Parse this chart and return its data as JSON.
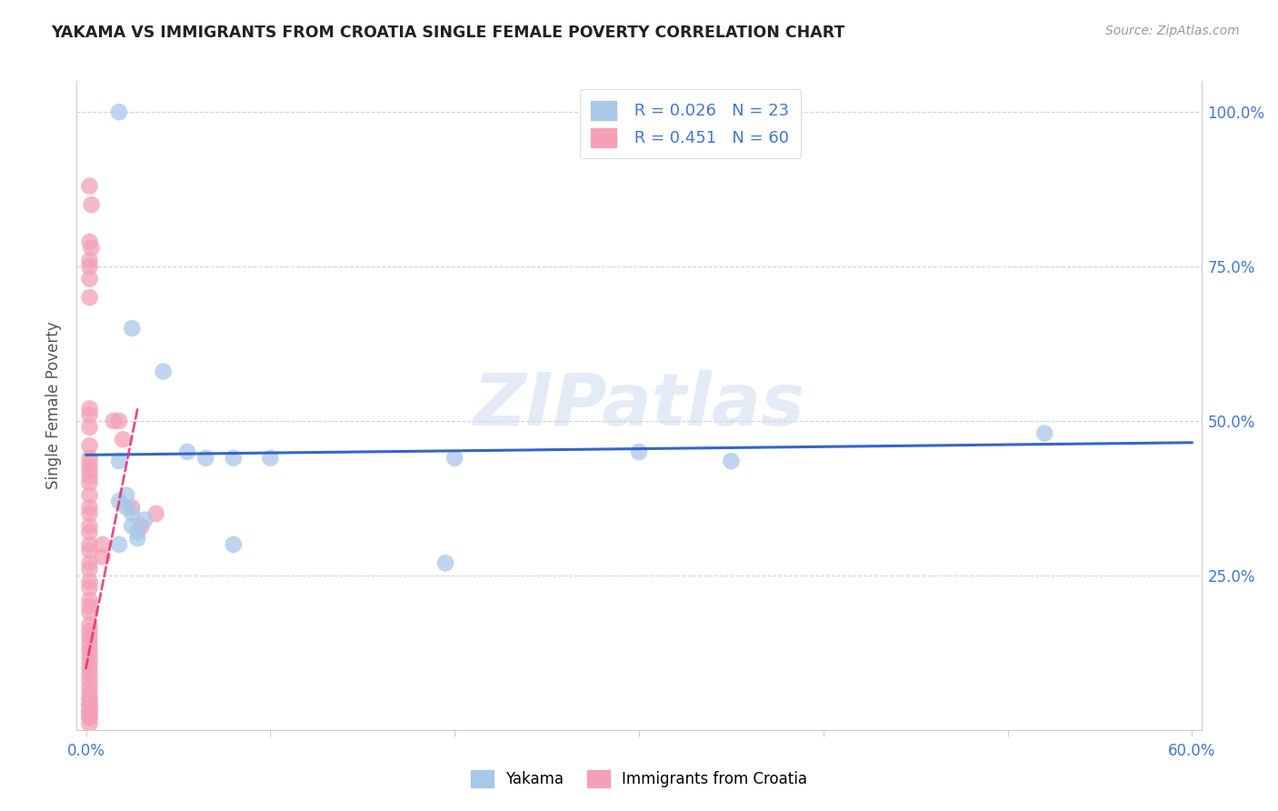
{
  "title": "YAKAMA VS IMMIGRANTS FROM CROATIA SINGLE FEMALE POVERTY CORRELATION CHART",
  "source": "Source: ZipAtlas.com",
  "ylabel": "Single Female Poverty",
  "xlim": [
    -0.005,
    0.605
  ],
  "ylim": [
    0.0,
    1.05
  ],
  "xticks": [
    0.0,
    0.1,
    0.2,
    0.3,
    0.4,
    0.5,
    0.6
  ],
  "xtick_labels": [
    "0.0%",
    "",
    "",
    "",
    "",
    "",
    "60.0%"
  ],
  "yticks": [
    0.0,
    0.25,
    0.5,
    0.75,
    1.0
  ],
  "ytick_labels_right": [
    "",
    "25.0%",
    "50.0%",
    "75.0%",
    "100.0%"
  ],
  "blue_R": "0.026",
  "blue_N": "23",
  "pink_R": "0.451",
  "pink_N": "60",
  "blue_color": "#a8c8e8",
  "pink_color": "#f4a0b5",
  "blue_line_color": "#3366cc",
  "pink_line_color": "#e03070",
  "watermark": "ZIPatlas",
  "blue_line_x": [
    0.0,
    0.6
  ],
  "blue_line_y": [
    0.445,
    0.465
  ],
  "pink_line_x": [
    0.0,
    0.028
  ],
  "pink_line_y": [
    0.1,
    0.52
  ],
  "blue_points_x": [
    0.018,
    0.025,
    0.042,
    0.055,
    0.065,
    0.08,
    0.08,
    0.1,
    0.2,
    0.195,
    0.3,
    0.35,
    0.52,
    0.018,
    0.018,
    0.022,
    0.022,
    0.025,
    0.025,
    0.028,
    0.028,
    0.032,
    0.018
  ],
  "blue_points_y": [
    1.0,
    0.65,
    0.58,
    0.45,
    0.44,
    0.44,
    0.3,
    0.44,
    0.44,
    0.27,
    0.45,
    0.435,
    0.48,
    0.435,
    0.37,
    0.38,
    0.36,
    0.33,
    0.35,
    0.32,
    0.31,
    0.34,
    0.3
  ],
  "pink_points_x": [
    0.002,
    0.003,
    0.002,
    0.003,
    0.002,
    0.002,
    0.002,
    0.002,
    0.002,
    0.002,
    0.002,
    0.002,
    0.002,
    0.002,
    0.002,
    0.002,
    0.002,
    0.002,
    0.002,
    0.002,
    0.002,
    0.002,
    0.002,
    0.002,
    0.002,
    0.002,
    0.002,
    0.002,
    0.002,
    0.002,
    0.002,
    0.002,
    0.002,
    0.002,
    0.002,
    0.002,
    0.002,
    0.002,
    0.002,
    0.002,
    0.002,
    0.002,
    0.002,
    0.002,
    0.002,
    0.002,
    0.002,
    0.002,
    0.002,
    0.002,
    0.002,
    0.002,
    0.009,
    0.009,
    0.015,
    0.018,
    0.02,
    0.025,
    0.03,
    0.038
  ],
  "pink_points_y": [
    0.88,
    0.85,
    0.79,
    0.78,
    0.76,
    0.75,
    0.73,
    0.7,
    0.52,
    0.51,
    0.49,
    0.46,
    0.44,
    0.43,
    0.42,
    0.41,
    0.4,
    0.38,
    0.36,
    0.35,
    0.33,
    0.32,
    0.3,
    0.29,
    0.27,
    0.26,
    0.24,
    0.23,
    0.21,
    0.2,
    0.19,
    0.17,
    0.16,
    0.15,
    0.14,
    0.13,
    0.12,
    0.11,
    0.1,
    0.09,
    0.08,
    0.07,
    0.06,
    0.05,
    0.04,
    0.03,
    0.02,
    0.01,
    0.02,
    0.03,
    0.04,
    0.05,
    0.3,
    0.28,
    0.5,
    0.5,
    0.47,
    0.36,
    0.33,
    0.35
  ]
}
